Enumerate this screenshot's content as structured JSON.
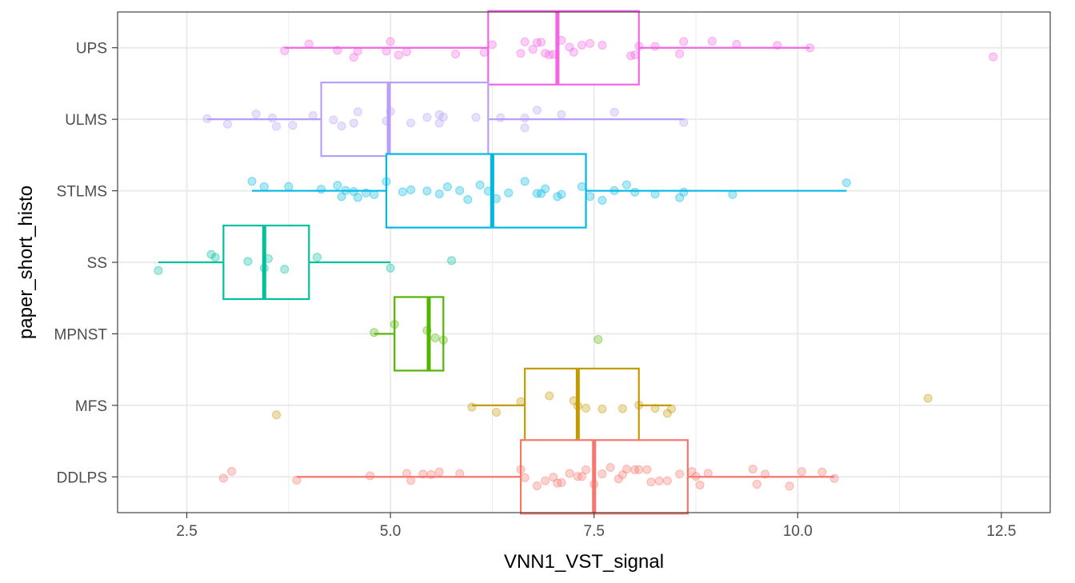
{
  "chart_data": {
    "type": "boxplot",
    "orientation": "horizontal",
    "title": "",
    "xlabel": "VNN1_VST_signal",
    "ylabel": "paper_short_histo",
    "xlim": [
      1.65,
      13.1
    ],
    "x_ticks": [
      "2.5",
      "5.0",
      "7.5",
      "10.0",
      "12.5"
    ],
    "grid": true,
    "legend": "none",
    "categories": [
      "UPS",
      "ULMS",
      "STLMS",
      "SS",
      "MPNST",
      "MFS",
      "DDLPS"
    ],
    "series": [
      {
        "category": "UPS",
        "color": "#F564E3",
        "box": {
          "q1": 6.2,
          "median": 7.05,
          "q3": 8.05,
          "whisker_low": 3.7,
          "whisker_high": 10.15
        },
        "points": [
          3.7,
          4.0,
          4.35,
          4.55,
          4.6,
          4.95,
          5.0,
          5.1,
          5.2,
          5.8,
          6.15,
          6.25,
          6.6,
          6.65,
          6.75,
          6.8,
          6.85,
          6.9,
          6.95,
          7.0,
          7.1,
          7.2,
          7.25,
          7.35,
          7.45,
          7.6,
          7.95,
          8.0,
          8.05,
          8.25,
          8.55,
          8.6,
          8.95,
          9.25,
          9.75,
          10.15,
          12.4
        ]
      },
      {
        "category": "ULMS",
        "color": "#B79FF8",
        "box": {
          "q1": 4.15,
          "median": 4.98,
          "q3": 6.2,
          "whisker_low": 2.75,
          "whisker_high": 8.6
        },
        "points": [
          2.75,
          3.0,
          3.35,
          3.55,
          3.6,
          3.8,
          4.05,
          4.3,
          4.4,
          4.55,
          4.6,
          4.95,
          5.0,
          5.25,
          5.45,
          5.6,
          5.6,
          5.65,
          6.05,
          6.35,
          6.65,
          6.65,
          6.8,
          7.1,
          7.75,
          8.6
        ]
      },
      {
        "category": "STLMS",
        "color": "#00B9E3",
        "box": {
          "q1": 4.95,
          "median": 6.25,
          "q3": 7.4,
          "whisker_low": 3.3,
          "whisker_high": 10.6
        },
        "points": [
          3.3,
          3.45,
          3.75,
          4.15,
          4.35,
          4.4,
          4.45,
          4.55,
          4.6,
          4.7,
          4.8,
          4.95,
          5.15,
          5.25,
          5.45,
          5.6,
          5.7,
          5.85,
          5.95,
          6.1,
          6.2,
          6.3,
          6.45,
          6.65,
          6.8,
          6.85,
          6.9,
          7.05,
          7.1,
          7.35,
          7.45,
          7.6,
          7.75,
          7.9,
          8.0,
          8.25,
          8.55,
          8.6,
          9.2,
          10.6
        ]
      },
      {
        "category": "SS",
        "color": "#00BF9C",
        "box": {
          "q1": 2.95,
          "median": 3.45,
          "q3": 4.0,
          "whisker_low": 2.15,
          "whisker_high": 5.0
        },
        "points": [
          2.15,
          2.8,
          2.85,
          3.25,
          3.45,
          3.5,
          3.7,
          4.1,
          5.0,
          5.75
        ]
      },
      {
        "category": "MPNST",
        "color": "#53B400",
        "box": {
          "q1": 5.05,
          "median": 5.47,
          "q3": 5.65,
          "whisker_low": 4.8,
          "whisker_high": 5.65
        },
        "points": [
          4.8,
          5.05,
          5.45,
          5.55,
          5.65,
          7.55
        ]
      },
      {
        "category": "MFS",
        "color": "#C49A00",
        "box": {
          "q1": 6.65,
          "median": 7.3,
          "q3": 8.05,
          "whisker_low": 6.0,
          "whisker_high": 8.45
        },
        "points": [
          3.6,
          6.0,
          6.3,
          6.6,
          6.95,
          7.25,
          7.3,
          7.4,
          7.6,
          7.85,
          8.05,
          8.25,
          8.4,
          8.45,
          11.6
        ]
      },
      {
        "category": "DDLPS",
        "color": "#F8766D",
        "box": {
          "q1": 6.6,
          "median": 7.5,
          "q3": 8.65,
          "whisker_low": 3.85,
          "whisker_high": 10.45
        },
        "points": [
          2.95,
          3.05,
          3.85,
          4.75,
          5.2,
          5.25,
          5.4,
          5.5,
          5.6,
          5.85,
          6.6,
          6.65,
          6.8,
          6.9,
          7.0,
          7.05,
          7.1,
          7.2,
          7.3,
          7.35,
          7.4,
          7.5,
          7.6,
          7.7,
          7.8,
          7.85,
          7.9,
          8.0,
          8.05,
          8.15,
          8.2,
          8.3,
          8.4,
          8.55,
          8.7,
          8.75,
          8.8,
          8.9,
          9.45,
          9.5,
          9.6,
          9.9,
          10.05,
          10.3,
          10.45
        ]
      }
    ]
  }
}
